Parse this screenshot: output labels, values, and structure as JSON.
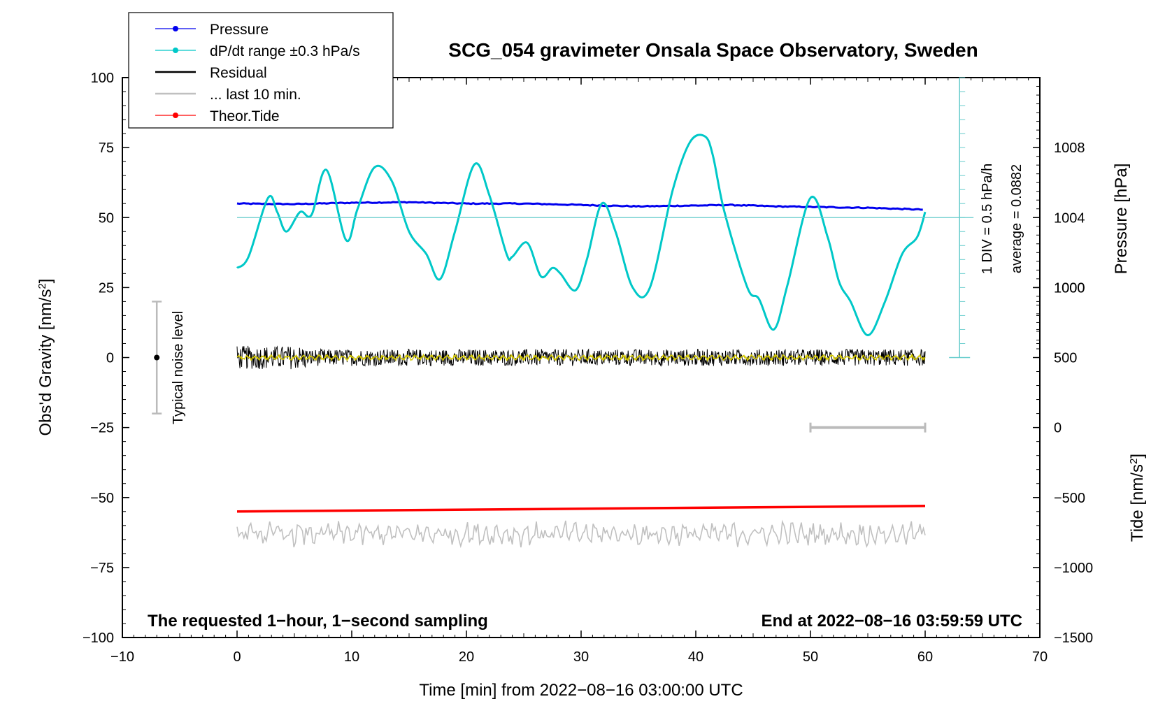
{
  "chart_data": {
    "type": "line",
    "title": "SCG_054 gravimeter Onsala Space Observatory, Sweden",
    "xlabel": "Time [min] from 2022−08−16 03:00:00 UTC",
    "ylabel": "Obs'd Gravity [nm/s",
    "ylabel_sup": "2",
    "ylabel_end": "]",
    "right_ylabel_pressure": "Pressure [hPa]",
    "right_ylabel_tide": "Tide [nm/s",
    "right_ylabel_tide_sup": "2",
    "right_ylabel_tide_end": "]",
    "xlim": [
      -10,
      70
    ],
    "ylim": [
      -100,
      100
    ],
    "x_ticks": [
      -10,
      0,
      10,
      20,
      30,
      40,
      50,
      60,
      70
    ],
    "x_tick_labels": [
      "−10",
      "0",
      "10",
      "20",
      "30",
      "40",
      "50",
      "60",
      "70"
    ],
    "y_ticks": [
      -100,
      -75,
      -50,
      -25,
      0,
      25,
      50,
      75,
      100
    ],
    "y_tick_labels": [
      "−100",
      "−75",
      "−50",
      "−25",
      "0",
      "25",
      "50",
      "75",
      "100"
    ],
    "pressure_ticks": [
      1000,
      1004,
      1008
    ],
    "pressure_tick_labels": [
      "1000",
      "1004",
      "1008"
    ],
    "pressure_axis_map": {
      "at_gravity_0": 996,
      "hpa_per_25_gravity": 4
    },
    "tide_ticks": [
      -1500,
      -1000,
      -500,
      0,
      500,
      1000
    ],
    "tide_tick_labels": [
      "−1500",
      "−1000",
      "−500",
      "0",
      "500",
      "1000"
    ],
    "tide_axis_map": {
      "at_gravity_minus100": -1500,
      "tide_per_25_gravity": 500
    },
    "legend": [
      {
        "label": "Pressure",
        "color": "#0000ee",
        "marker": true
      },
      {
        "label": "dP/dt range ±0.3 hPa/s",
        "color": "#00c8c8",
        "marker": true
      },
      {
        "label": "Residual",
        "color": "#000000",
        "marker": false
      },
      {
        "label": "... last 10 min.",
        "color": "#c0c0c0",
        "marker": false
      },
      {
        "label": "Theor.Tide",
        "color": "#ff0000",
        "marker": true
      }
    ],
    "legend_placement": "top-left",
    "grid": false,
    "annotation_left": "The requested 1−hour, 1−second sampling",
    "annotation_right": "End at 2022−08−16 03:59:59 UTC",
    "noise_label": "Typical noise level",
    "noise_range": [
      -20,
      20
    ],
    "noise_x": -7,
    "scale_label_1": "1 DIV = 0.5 hPa/h",
    "scale_label_2": "average = 0.0882",
    "scale_bar_x": 63,
    "scale_bar_range": [
      0,
      100
    ],
    "scale_bar_div": 5,
    "dpdt_baseline": 50,
    "last10_bar": {
      "x_range": [
        50,
        60
      ],
      "y": -25
    },
    "series": [
      {
        "name": "Pressure",
        "color": "#0000ee",
        "x": [
          0,
          5,
          10,
          15,
          20,
          25,
          30,
          35,
          40,
          43,
          47,
          50,
          55,
          60
        ],
        "values": [
          55,
          54.8,
          55.3,
          55.5,
          55,
          55,
          54.5,
          54,
          54.3,
          54.5,
          54,
          53.8,
          53.5,
          52.8
        ]
      },
      {
        "name": "dP/dt range ±0.3 hPa/s",
        "color": "#00c8c8",
        "x": [
          0,
          1,
          2.7,
          3.5,
          4.3,
          5.5,
          6.5,
          7.8,
          9.5,
          10.5,
          12,
          13.5,
          15,
          16.5,
          17.7,
          19,
          20.7,
          22,
          23.5,
          24,
          25.3,
          26.5,
          27.5,
          28.2,
          29.5,
          30.5,
          31.8,
          33,
          34.5,
          36,
          38,
          39.5,
          40.8,
          41.5,
          42.5,
          44.5,
          45.5,
          46.8,
          48,
          50,
          51.5,
          52.5,
          53.5,
          55,
          56.5,
          58,
          59.3,
          60
        ],
        "values": [
          32,
          36,
          57,
          52,
          45,
          52,
          51,
          67,
          42,
          53,
          68,
          63,
          45,
          37,
          28,
          45,
          69,
          58,
          37,
          36,
          41,
          29,
          32,
          30,
          24,
          35,
          55,
          45,
          25,
          25,
          60,
          77,
          79,
          72,
          52,
          25,
          21,
          10,
          26,
          57,
          43,
          27,
          20,
          8,
          20,
          37,
          43,
          52
        ]
      },
      {
        "name": "Residual",
        "color": "#000000",
        "amplitude": 3,
        "x_range": [
          0,
          60
        ]
      },
      {
        "name": "... last 10 min.",
        "color": "#c0c0c0",
        "center": -63,
        "amplitude": 3,
        "x_range": [
          0,
          60
        ]
      },
      {
        "name": "Theor.Tide",
        "color": "#ff0000",
        "x": [
          0,
          60
        ],
        "values": [
          -55,
          -53
        ]
      }
    ]
  }
}
